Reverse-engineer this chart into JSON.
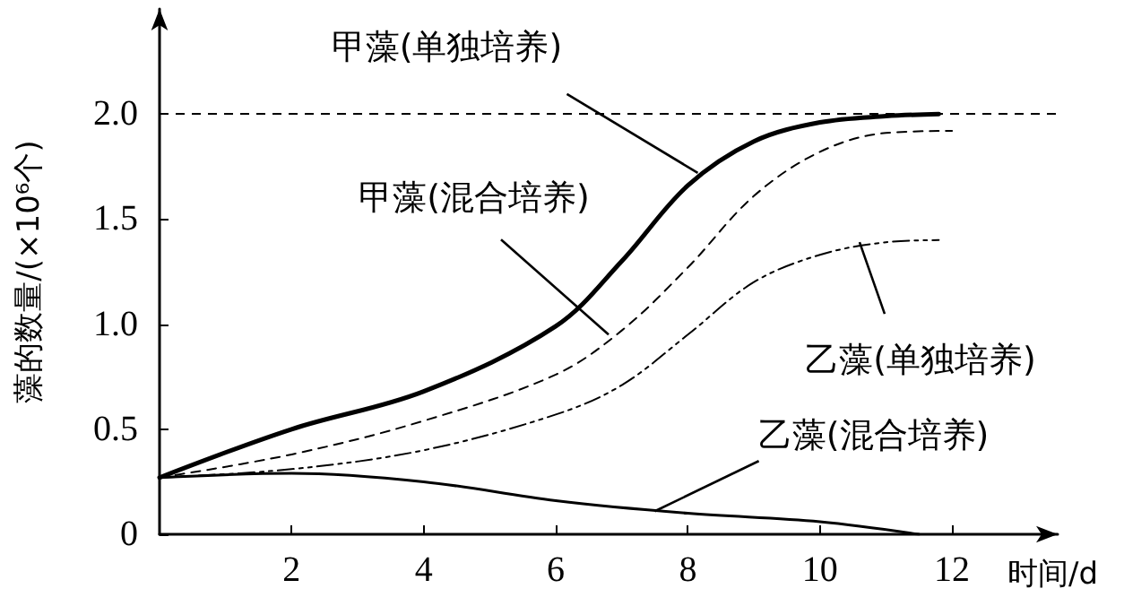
{
  "chart_data": {
    "type": "line",
    "ylabel": "藻的数量/(×10⁶个)",
    "xlabel": "时间/d",
    "xlim": [
      0,
      13.6
    ],
    "xticks": [
      2,
      4,
      6,
      8,
      10,
      12
    ],
    "ylim": [
      0,
      2.5
    ],
    "yticks": [
      0,
      0.5,
      {
        "value": 1,
        "label": "1.0"
      },
      1.5,
      {
        "value": 2,
        "label": "2.0"
      }
    ],
    "grid": false,
    "marker": "none",
    "series": [
      {
        "color": "#000000",
        "line_style": "solid",
        "x": [
          0,
          2,
          4,
          6,
          7,
          8,
          9,
          10,
          11,
          11.8
        ],
        "values": [
          0.27,
          0.5,
          0.68,
          0.99,
          1.3,
          1.66,
          1.87,
          1.96,
          1.99,
          2.0
        ]
      },
      {
        "color": "#000000",
        "line_style": "dashed",
        "x": [
          0,
          2,
          4,
          6,
          7,
          8,
          9,
          10,
          11,
          12
        ],
        "values": [
          0.27,
          0.38,
          0.54,
          0.76,
          0.97,
          1.27,
          1.61,
          1.82,
          1.91,
          1.92
        ]
      },
      {
        "color": "#000000",
        "line_style": "dashdot",
        "x": [
          0,
          2,
          4,
          6,
          7,
          8,
          9,
          10,
          11,
          11.8
        ],
        "values": [
          0.27,
          0.31,
          0.4,
          0.57,
          0.71,
          0.95,
          1.2,
          1.33,
          1.39,
          1.4
        ]
      },
      {
        "color": "#000000",
        "line_style": "solid",
        "x": [
          0,
          2,
          4,
          6,
          8,
          10,
          11.5
        ],
        "values": [
          0.27,
          0.29,
          0.25,
          0.16,
          0.1,
          0.06,
          0.0
        ]
      }
    ],
    "ref_lines": [
      {
        "axis": "y",
        "value": 2.0,
        "line_style": "dashed",
        "color": "#000000"
      }
    ],
    "annotations": [
      {
        "text": "甲藻(单独培养)",
        "x": 8.15,
        "y": 1.72
      },
      {
        "text": "甲藻(混合培养)",
        "x": 6.8,
        "y": 0.95
      },
      {
        "text": "乙藻(单独培养)",
        "x": 10.6,
        "y": 1.39
      },
      {
        "text": "乙藻(混合培养)",
        "x": 7.5,
        "y": 0.11
      }
    ]
  }
}
